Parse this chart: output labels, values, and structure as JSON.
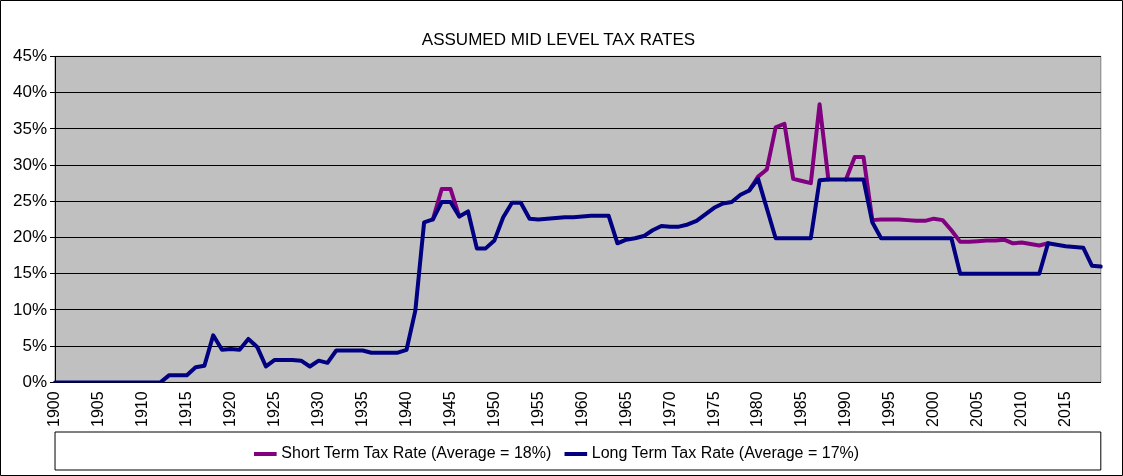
{
  "chart_data": {
    "type": "line",
    "title": "ASSUMED MID LEVEL TAX RATES",
    "categories": [
      "1900",
      null,
      null,
      null,
      null,
      "1905",
      null,
      null,
      null,
      null,
      "1910",
      null,
      null,
      null,
      null,
      "1915",
      null,
      null,
      null,
      null,
      "1920",
      null,
      null,
      null,
      null,
      "1925",
      null,
      null,
      null,
      null,
      "1930",
      null,
      null,
      null,
      null,
      "1935",
      null,
      null,
      null,
      null,
      "1940",
      null,
      null,
      null,
      null,
      "1945",
      null,
      null,
      null,
      null,
      "1950",
      null,
      null,
      null,
      null,
      "1955",
      null,
      null,
      null,
      null,
      "1960",
      null,
      null,
      null,
      null,
      "1965",
      null,
      null,
      null,
      null,
      "1970",
      null,
      null,
      null,
      null,
      "1975",
      null,
      null,
      null,
      null,
      "1980",
      null,
      null,
      null,
      null,
      "1985",
      null,
      null,
      null,
      null,
      "1990",
      null,
      null,
      null,
      null,
      "1995",
      null,
      null,
      null,
      null,
      "2000",
      null,
      null,
      null,
      null,
      "2005",
      null,
      null,
      null,
      null,
      "2010",
      null,
      null,
      null,
      null,
      "2015",
      null,
      null,
      null,
      null
    ],
    "series": [
      {
        "name": "Short Term Tax Rate (Average = 18%)",
        "color": "#800080",
        "values": [
          null,
          null,
          null,
          null,
          null,
          null,
          null,
          null,
          null,
          null,
          null,
          null,
          null,
          null,
          null,
          null,
          null,
          null,
          null,
          null,
          null,
          null,
          null,
          null,
          null,
          null,
          null,
          null,
          null,
          null,
          null,
          null,
          null,
          null,
          null,
          null,
          null,
          null,
          null,
          null,
          null,
          null,
          null,
          22.5,
          26.7,
          26.7,
          22.9,
          null,
          null,
          null,
          null,
          null,
          null,
          null,
          null,
          null,
          null,
          null,
          null,
          null,
          null,
          null,
          null,
          null,
          null,
          null,
          null,
          null,
          null,
          null,
          null,
          null,
          null,
          null,
          null,
          null,
          null,
          null,
          null,
          26.5,
          28.4,
          29.4,
          35.2,
          35.7,
          28.1,
          27.8,
          27.5,
          38.4,
          28.0,
          null,
          28.0,
          31.1,
          31.1,
          22.4,
          22.5,
          22.5,
          22.5,
          22.4,
          22.3,
          22.3,
          22.6,
          22.4,
          21.0,
          19.4,
          19.4,
          19.5,
          19.6,
          19.6,
          19.7,
          19.2,
          19.3,
          19.1,
          18.9,
          19.2,
          null,
          null,
          null,
          null,
          null,
          null
        ]
      },
      {
        "name": "Long Term Tax Rate (Average = 17%)",
        "color": "#000080",
        "values": [
          0,
          0,
          0,
          0,
          0,
          0,
          0,
          0,
          0,
          0,
          0,
          0,
          0,
          1.0,
          1.0,
          1.0,
          2.1,
          2.3,
          6.5,
          4.5,
          4.6,
          4.5,
          6.0,
          4.9,
          2.2,
          3.1,
          3.1,
          3.1,
          3.0,
          2.2,
          3.0,
          2.7,
          4.4,
          4.4,
          4.4,
          4.4,
          4.1,
          4.1,
          4.1,
          4.1,
          4.5,
          9.9,
          22.1,
          22.5,
          24.9,
          24.9,
          22.9,
          23.6,
          18.5,
          18.5,
          19.6,
          22.8,
          24.8,
          24.8,
          22.6,
          22.5,
          22.6,
          22.7,
          22.8,
          22.8,
          22.9,
          23.0,
          23.0,
          23.0,
          19.2,
          19.7,
          19.9,
          20.2,
          21.0,
          21.6,
          21.5,
          21.5,
          21.8,
          22.3,
          23.2,
          24.1,
          24.7,
          24.9,
          25.9,
          26.5,
          28.1,
          24.0,
          19.9,
          19.9,
          19.9,
          19.9,
          19.9,
          27.9,
          28.0,
          28.0,
          28.0,
          28.0,
          28.0,
          22.1,
          19.9,
          19.9,
          19.9,
          19.9,
          19.9,
          19.9,
          19.9,
          19.9,
          19.9,
          15.0,
          15.0,
          15.0,
          15.0,
          15.0,
          15.0,
          15.0,
          15.0,
          15.0,
          15.0,
          19.2,
          19.0,
          18.8,
          18.7,
          18.6,
          16.1,
          16.0
        ]
      }
    ],
    "ylim": [
      0,
      45
    ],
    "yticks": [
      {
        "value": 0,
        "label": "0%"
      },
      {
        "value": 5,
        "label": "5%"
      },
      {
        "value": 10,
        "label": "10%"
      },
      {
        "value": 15,
        "label": "15%"
      },
      {
        "value": 20,
        "label": "20%"
      },
      {
        "value": 25,
        "label": "25%"
      },
      {
        "value": 30,
        "label": "30%"
      },
      {
        "value": 35,
        "label": "35%"
      },
      {
        "value": 40,
        "label": "40%"
      },
      {
        "value": 45,
        "label": "45%"
      }
    ],
    "grid": "y",
    "legend": "bottom",
    "marker": "none",
    "line_style": "solid"
  }
}
